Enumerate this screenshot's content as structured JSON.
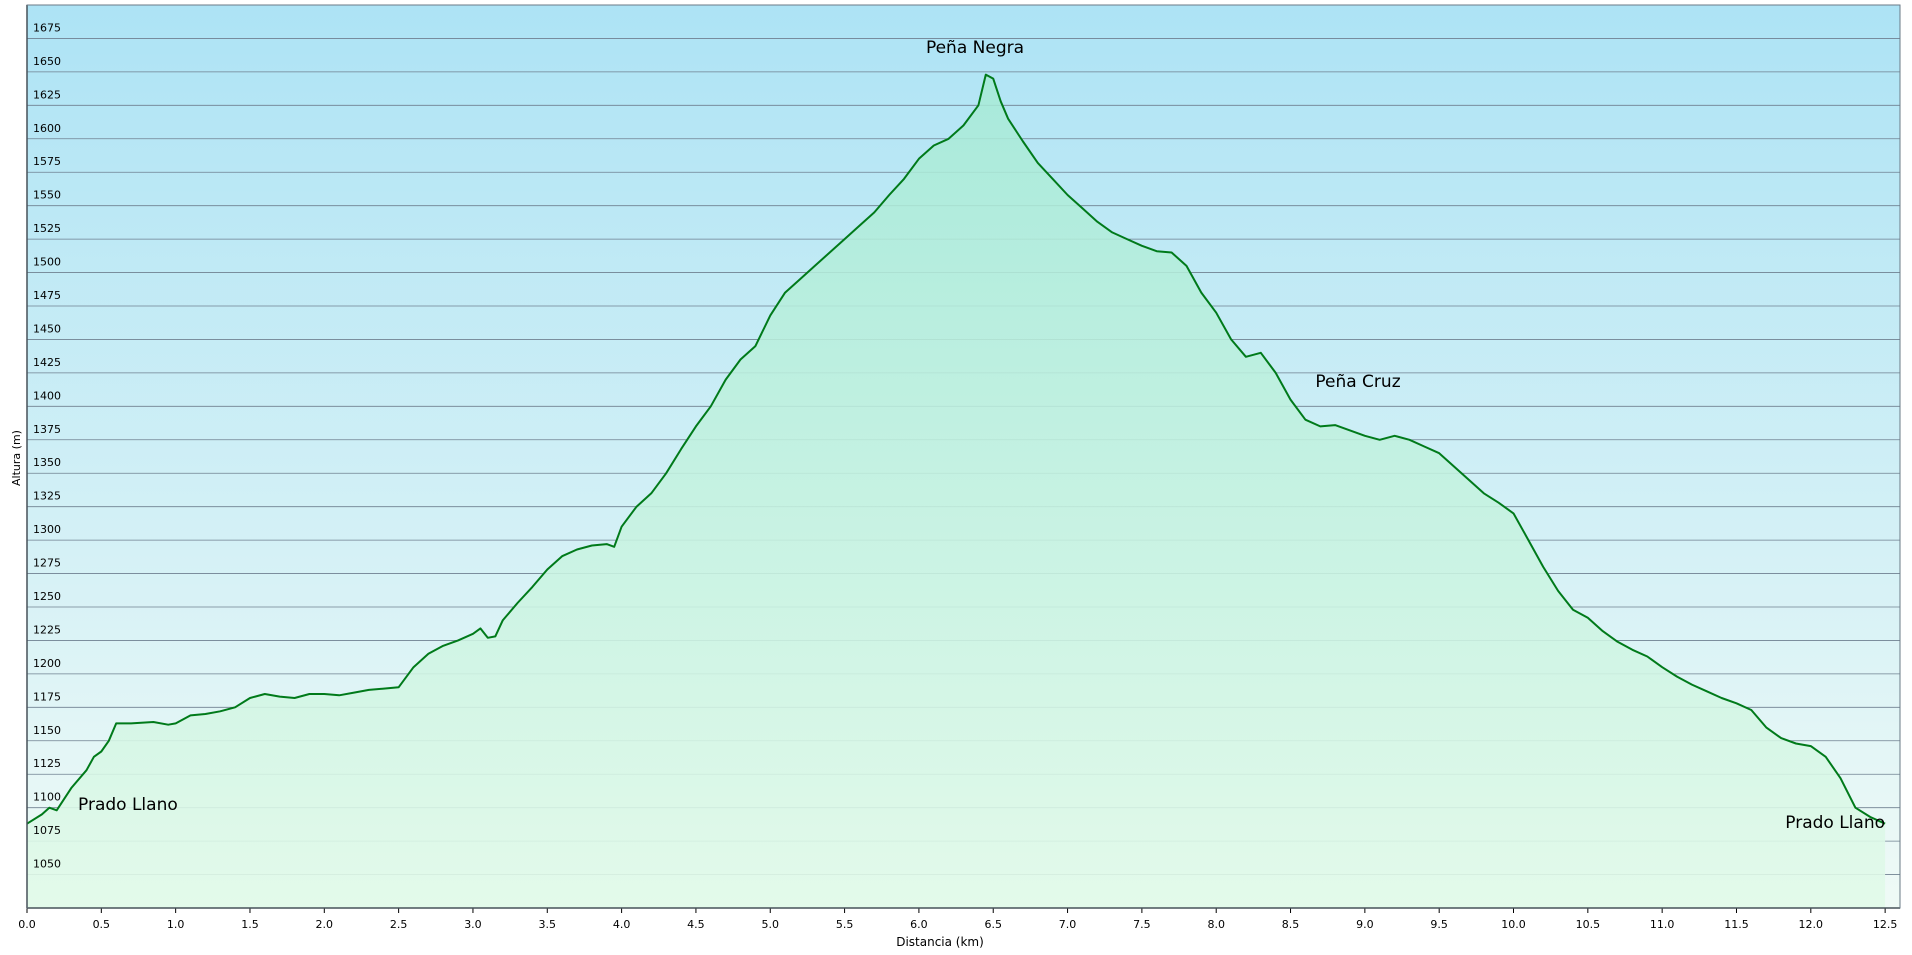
{
  "chart_data": {
    "type": "area",
    "x_label": "Distancia  (km)",
    "y_label": "Altura (m)",
    "annotations": [
      "Peña Negra",
      "Peña Cruz",
      "Prado Llano",
      "Prado Llano"
    ],
    "color": "#007a1a",
    "grid": true,
    "xlim": [
      0,
      12.6
    ],
    "ylim": [
      1025,
      1700
    ],
    "xticks": [
      {
        "value": 0,
        "label": "0.0"
      },
      0.5,
      {
        "value": 1,
        "label": "1.0"
      },
      1.5,
      {
        "value": 2,
        "label": "2.0"
      },
      2.5,
      {
        "value": 3,
        "label": "3.0"
      },
      3.5,
      {
        "value": 4,
        "label": "4.0"
      },
      4.5,
      {
        "value": 5,
        "label": "5.0"
      },
      5.5,
      {
        "value": 6,
        "label": "6.0"
      },
      6.5,
      {
        "value": 7,
        "label": "7.0"
      },
      7.5,
      {
        "value": 8,
        "label": "8.0"
      },
      8.5,
      {
        "value": 9,
        "label": "9.0"
      },
      9.5,
      {
        "value": 10,
        "label": "10.0"
      },
      10.5,
      {
        "value": 11,
        "label": "11.0"
      },
      11.5,
      {
        "value": 12,
        "label": "12.0"
      },
      12.5
    ],
    "yticks": [
      1050,
      1075,
      1100,
      1125,
      1150,
      1175,
      1200,
      1225,
      1250,
      1275,
      1300,
      1325,
      1350,
      1375,
      1400,
      1425,
      1450,
      1475,
      1500,
      1525,
      1550,
      1575,
      1600,
      1625,
      1650,
      1675
    ],
    "x": [
      0,
      0.1,
      0.15,
      0.2,
      0.3,
      0.4,
      0.45,
      0.5,
      0.55,
      0.6,
      0.7,
      0.85,
      0.95,
      1.0,
      1.1,
      1.2,
      1.3,
      1.4,
      1.5,
      1.6,
      1.7,
      1.8,
      1.9,
      2.0,
      2.1,
      2.2,
      2.3,
      2.4,
      2.5,
      2.6,
      2.7,
      2.8,
      2.9,
      3.0,
      3.05,
      3.1,
      3.15,
      3.2,
      3.3,
      3.4,
      3.5,
      3.6,
      3.7,
      3.8,
      3.9,
      3.95,
      4.0,
      4.1,
      4.2,
      4.3,
      4.4,
      4.5,
      4.6,
      4.7,
      4.8,
      4.9,
      5.0,
      5.1,
      5.2,
      5.3,
      5.4,
      5.5,
      5.6,
      5.7,
      5.8,
      5.9,
      6.0,
      6.1,
      6.2,
      6.3,
      6.4,
      6.45,
      6.5,
      6.55,
      6.6,
      6.7,
      6.8,
      6.9,
      7.0,
      7.1,
      7.2,
      7.3,
      7.4,
      7.5,
      7.6,
      7.7,
      7.8,
      7.9,
      8.0,
      8.1,
      8.2,
      8.3,
      8.4,
      8.5,
      8.6,
      8.7,
      8.8,
      8.9,
      9.0,
      9.1,
      9.2,
      9.3,
      9.4,
      9.5,
      9.6,
      9.7,
      9.8,
      9.9,
      10.0,
      10.1,
      10.2,
      10.3,
      10.4,
      10.5,
      10.6,
      10.7,
      10.8,
      10.9,
      11.0,
      11.1,
      11.2,
      11.3,
      11.4,
      11.5,
      11.6,
      11.7,
      11.8,
      11.9,
      12.0,
      12.1,
      12.2,
      12.3,
      12.4,
      12.5
    ],
    "values": [
      1088,
      1095,
      1100,
      1098,
      1115,
      1128,
      1138,
      1142,
      1150,
      1163,
      1163,
      1164,
      1162,
      1163,
      1169,
      1170,
      1172,
      1175,
      1182,
      1185,
      1183,
      1182,
      1185,
      1185,
      1184,
      1186,
      1188,
      1189,
      1190,
      1205,
      1215,
      1221,
      1225,
      1230,
      1234,
      1227,
      1228,
      1240,
      1253,
      1265,
      1278,
      1288,
      1293,
      1296,
      1297,
      1295,
      1310,
      1325,
      1335,
      1350,
      1368,
      1385,
      1400,
      1420,
      1435,
      1445,
      1468,
      1485,
      1495,
      1505,
      1515,
      1525,
      1535,
      1545,
      1558,
      1570,
      1585,
      1595,
      1600,
      1610,
      1625,
      1648,
      1645,
      1628,
      1615,
      1598,
      1582,
      1570,
      1558,
      1548,
      1538,
      1530,
      1525,
      1520,
      1516,
      1515,
      1505,
      1485,
      1470,
      1450,
      1437,
      1440,
      1425,
      1405,
      1390,
      1385,
      1386,
      1382,
      1378,
      1375,
      1378,
      1375,
      1370,
      1365,
      1355,
      1345,
      1335,
      1328,
      1320,
      1300,
      1280,
      1262,
      1248,
      1242,
      1232,
      1224,
      1218,
      1213,
      1205,
      1198,
      1192,
      1187,
      1182,
      1178,
      1173,
      1160,
      1152,
      1148,
      1146,
      1138,
      1122,
      1100,
      1093,
      1088
    ]
  }
}
